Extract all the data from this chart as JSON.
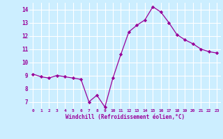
{
  "x": [
    0,
    1,
    2,
    3,
    4,
    5,
    6,
    7,
    8,
    9,
    10,
    11,
    12,
    13,
    14,
    15,
    16,
    17,
    18,
    19,
    20,
    21,
    22,
    23
  ],
  "y": [
    9.1,
    8.9,
    8.8,
    9.0,
    8.9,
    8.8,
    8.7,
    7.0,
    7.5,
    6.6,
    8.8,
    10.6,
    12.3,
    12.8,
    13.2,
    14.2,
    13.8,
    13.0,
    12.1,
    11.7,
    11.4,
    11.0,
    10.8,
    10.7
  ],
  "xlabel": "Windchill (Refroidissement éolien,°C)",
  "ylim": [
    6.5,
    14.5
  ],
  "xlim": [
    -0.5,
    23.5
  ],
  "yticks": [
    7,
    8,
    9,
    10,
    11,
    12,
    13,
    14
  ],
  "xticks": [
    0,
    1,
    2,
    3,
    4,
    5,
    6,
    7,
    8,
    9,
    10,
    11,
    12,
    13,
    14,
    15,
    16,
    17,
    18,
    19,
    20,
    21,
    22,
    23
  ],
  "line_color": "#990099",
  "marker_color": "#990099",
  "bg_color": "#cceeff",
  "grid_color": "#ffffff",
  "tick_label_color": "#990099",
  "axis_label_color": "#990099"
}
